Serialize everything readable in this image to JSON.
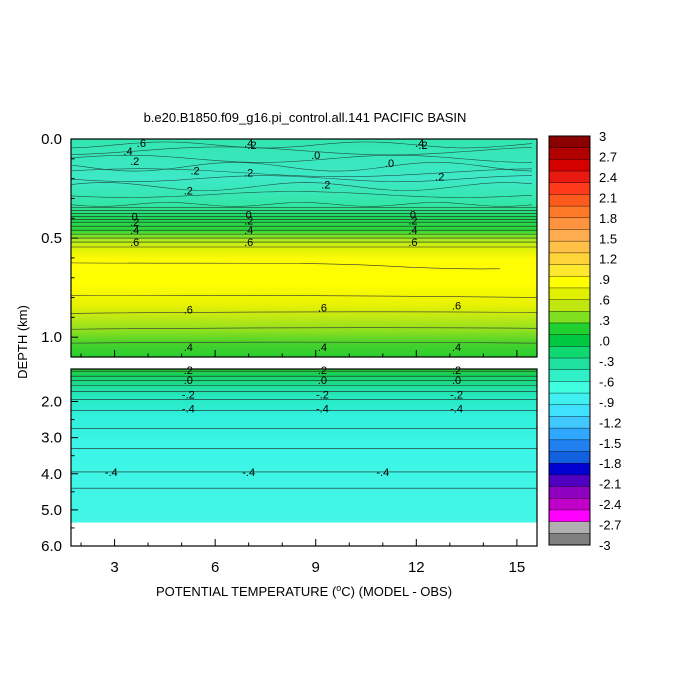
{
  "chart_data": {
    "type": "heatmap",
    "title": "b.e20.B1850.f09_g16.pi_control.all.141 PACIFIC BASIN",
    "xlabel_prefix": "POTENTIAL TEMPERATURE (",
    "xlabel_unit_sup": "o",
    "xlabel_suffix": "C) (MODEL - OBS)",
    "ylabel": "DEPTH (km)",
    "x_range": [
      1.7,
      15.6
    ],
    "x_ticks": [
      3,
      6,
      9,
      12,
      15
    ],
    "upper_panel": {
      "y_range": [
        0.0,
        1.1
      ],
      "y_ticks": [
        "0.0",
        "0.5",
        "1.0"
      ]
    },
    "lower_panel": {
      "y_range": [
        1.1,
        6.0
      ],
      "y_ticks": [
        "2.0",
        "3.0",
        "4.0",
        "5.0",
        "6.0"
      ],
      "data_bottom_km": 5.35
    },
    "colorbar_labels": [
      "3",
      "2.7",
      "2.4",
      "2.1",
      "1.8",
      "1.5",
      "1.2",
      ".9",
      ".6",
      ".3",
      ".0",
      "-.3",
      "-.6",
      "-.9",
      "-1.2",
      "-1.5",
      "-1.8",
      "-2.1",
      "-2.4",
      "-2.7",
      "-3"
    ],
    "colorbar_colors": [
      "#8b0000",
      "#b00000",
      "#d40000",
      "#e81a10",
      "#ff3a1a",
      "#ff5a1e",
      "#ff7a28",
      "#ff9440",
      "#ffac50",
      "#ffc048",
      "#ffd438",
      "#ffe830",
      "#ffff00",
      "#e0f000",
      "#c0e810",
      "#80e020",
      "#20d030",
      "#00c840",
      "#10d870",
      "#20e0a0",
      "#30f0c8",
      "#40ffe0",
      "#40f0f0",
      "#40e0ff",
      "#40c8ff",
      "#30a8ff",
      "#2080f0",
      "#1060e0",
      "#0000d0",
      "#5000c0",
      "#9000c0",
      "#c000c8",
      "#ff00ff",
      "#b0b0b0",
      "#808080"
    ],
    "contour_labels": {
      "upper": [
        {
          "x": 3.8,
          "depth": 0.02,
          "text": ".6"
        },
        {
          "x": 3.4,
          "depth": 0.06,
          "text": ".4"
        },
        {
          "x": 3.6,
          "depth": 0.11,
          "text": ".2"
        },
        {
          "x": 5.4,
          "depth": 0.16,
          "text": ".2"
        },
        {
          "x": 5.2,
          "depth": 0.26,
          "text": ".2"
        },
        {
          "x": 7.0,
          "depth": 0.02,
          "text": ".4"
        },
        {
          "x": 7.1,
          "depth": 0.03,
          "text": ".2"
        },
        {
          "x": 9.0,
          "depth": 0.08,
          "text": ".0"
        },
        {
          "x": 7.0,
          "depth": 0.17,
          "text": ".2"
        },
        {
          "x": 9.3,
          "depth": 0.23,
          "text": ".2"
        },
        {
          "x": 11.2,
          "depth": 0.12,
          "text": ".0"
        },
        {
          "x": 12.1,
          "depth": 0.02,
          "text": ".4"
        },
        {
          "x": 12.2,
          "depth": 0.03,
          "text": ".2"
        },
        {
          "x": 12.7,
          "depth": 0.19,
          "text": ".2"
        },
        {
          "x": 3.6,
          "depth": 0.39,
          "text": "0"
        },
        {
          "x": 3.6,
          "depth": 0.42,
          "text": ".2"
        },
        {
          "x": 3.6,
          "depth": 0.46,
          "text": ".4"
        },
        {
          "x": 3.6,
          "depth": 0.52,
          "text": ".6"
        },
        {
          "x": 7.0,
          "depth": 0.38,
          "text": "0"
        },
        {
          "x": 7.0,
          "depth": 0.41,
          "text": ".2"
        },
        {
          "x": 7.0,
          "depth": 0.46,
          "text": ".4"
        },
        {
          "x": 7.0,
          "depth": 0.52,
          "text": ".6"
        },
        {
          "x": 11.9,
          "depth": 0.38,
          "text": "0"
        },
        {
          "x": 11.9,
          "depth": 0.41,
          "text": ".2"
        },
        {
          "x": 11.9,
          "depth": 0.46,
          "text": ".4"
        },
        {
          "x": 11.9,
          "depth": 0.52,
          "text": ".6"
        },
        {
          "x": 5.2,
          "depth": 0.86,
          "text": ".6"
        },
        {
          "x": 9.2,
          "depth": 0.85,
          "text": ".6"
        },
        {
          "x": 13.2,
          "depth": 0.84,
          "text": ".6"
        },
        {
          "x": 5.2,
          "depth": 1.05,
          "text": ".4"
        },
        {
          "x": 9.2,
          "depth": 1.05,
          "text": ".4"
        },
        {
          "x": 13.2,
          "depth": 1.05,
          "text": ".4"
        }
      ],
      "lower": [
        {
          "x": 5.2,
          "depth": 1.13,
          "text": ".2"
        },
        {
          "x": 5.2,
          "depth": 1.4,
          "text": ".0"
        },
        {
          "x": 5.2,
          "depth": 1.8,
          "text": "-.2"
        },
        {
          "x": 5.2,
          "depth": 2.2,
          "text": "-.4"
        },
        {
          "x": 9.2,
          "depth": 1.13,
          "text": ".2"
        },
        {
          "x": 9.2,
          "depth": 1.4,
          "text": ".0"
        },
        {
          "x": 9.2,
          "depth": 1.8,
          "text": "-.2"
        },
        {
          "x": 9.2,
          "depth": 2.2,
          "text": "-.4"
        },
        {
          "x": 13.2,
          "depth": 1.13,
          "text": ".2"
        },
        {
          "x": 13.2,
          "depth": 1.4,
          "text": ".0"
        },
        {
          "x": 13.2,
          "depth": 1.8,
          "text": "-.2"
        },
        {
          "x": 13.2,
          "depth": 2.2,
          "text": "-.4"
        },
        {
          "x": 2.9,
          "depth": 3.95,
          "text": "-.4"
        },
        {
          "x": 7.0,
          "depth": 3.95,
          "text": "-.4"
        },
        {
          "x": 11.0,
          "depth": 3.95,
          "text": "-.4"
        }
      ]
    }
  }
}
